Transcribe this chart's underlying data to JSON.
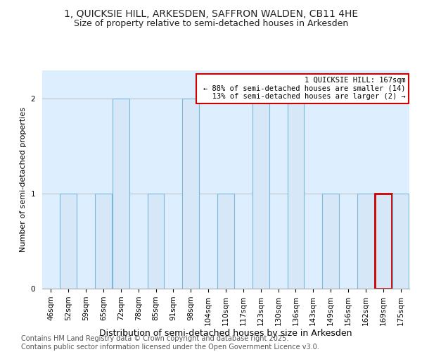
{
  "title_line1": "1, QUICKSIE HILL, ARKESDEN, SAFFRON WALDEN, CB11 4HE",
  "title_line2": "Size of property relative to semi-detached houses in Arkesden",
  "xlabel": "Distribution of semi-detached houses by size in Arkesden",
  "ylabel": "Number of semi-detached properties",
  "footnote": "Contains HM Land Registry data © Crown copyright and database right 2025.\nContains public sector information licensed under the Open Government Licence v3.0.",
  "categories": [
    "46sqm",
    "52sqm",
    "59sqm",
    "65sqm",
    "72sqm",
    "78sqm",
    "85sqm",
    "91sqm",
    "98sqm",
    "104sqm",
    "110sqm",
    "117sqm",
    "123sqm",
    "130sqm",
    "136sqm",
    "143sqm",
    "149sqm",
    "156sqm",
    "162sqm",
    "169sqm",
    "175sqm"
  ],
  "values": [
    0,
    1,
    0,
    1,
    2,
    0,
    1,
    0,
    2,
    0,
    1,
    0,
    2,
    0,
    2,
    0,
    1,
    0,
    1,
    1,
    1
  ],
  "bar_color": "#d6e8f7",
  "bar_edge_color": "#7ab8d9",
  "highlight_index": 19,
  "highlight_bar_color": "#d6e8f7",
  "highlight_edge_color": "#cc0000",
  "annotation_text": "1 QUICKSIE HILL: 167sqm\n← 88% of semi-detached houses are smaller (14)\n   13% of semi-detached houses are larger (2) →",
  "annotation_box_color": "#ffffff",
  "annotation_edge_color": "#cc0000",
  "ylim": [
    0,
    2.3
  ],
  "yticks": [
    0,
    1,
    2
  ],
  "bg_color": "#ffffff",
  "plot_bg_color": "#ddeeff",
  "grid_color": "#bbbbbb",
  "title_fontsize": 10,
  "subtitle_fontsize": 9,
  "xlabel_fontsize": 9,
  "ylabel_fontsize": 8,
  "tick_fontsize": 7.5,
  "footnote_fontsize": 7
}
